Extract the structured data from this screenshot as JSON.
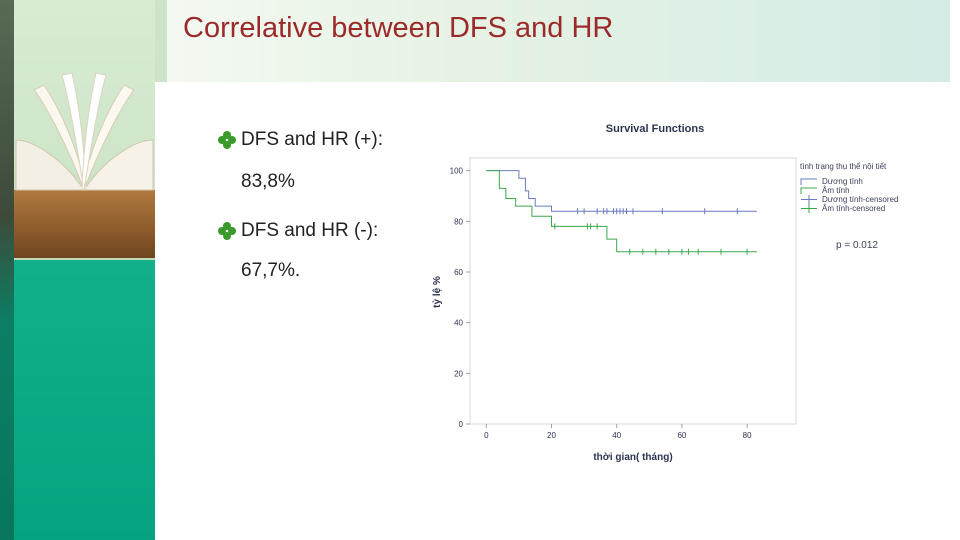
{
  "slide": {
    "title": "Correlative between DFS and HR",
    "bullets": [
      {
        "label": "DFS and HR (+):",
        "value": "83,8%"
      },
      {
        "label": "DFS and HR (-):",
        "value": "67,7%."
      }
    ],
    "bullet_color": "#3a9a2a",
    "title_color": "#9b2b2b"
  },
  "legend": {
    "title": "tình trạng thụ thể nội tiết",
    "items": [
      "Dương tính",
      "Âm tính",
      "Dương tính-censored",
      "Âm tính-censored"
    ]
  },
  "pvalue": "p = 0.012",
  "chart_data": {
    "type": "line",
    "title": "Survival Functions",
    "xlabel": "thời gian( tháng)",
    "ylabel": "tỷ lệ %",
    "xlim": [
      -5,
      95
    ],
    "ylim": [
      0,
      105
    ],
    "x_ticks": [
      0,
      20,
      40,
      60,
      80
    ],
    "y_ticks": [
      0,
      20,
      40,
      60,
      80,
      100
    ],
    "x_tick_labels": [
      "0",
      "20",
      "40",
      "60",
      "80"
    ],
    "y_tick_labels": [
      "0",
      "20",
      "40",
      "60",
      "80",
      "100"
    ],
    "grid": false,
    "legend_position": "right",
    "series": [
      {
        "name": "Dương tính",
        "color": "#6b7bbf",
        "steps": [
          [
            0,
            100
          ],
          [
            5,
            100
          ],
          [
            10,
            97
          ],
          [
            12,
            92
          ],
          [
            13,
            89
          ],
          [
            15,
            86
          ],
          [
            20,
            84
          ],
          [
            83,
            84
          ]
        ],
        "censored": [
          [
            28,
            84
          ],
          [
            30,
            84
          ],
          [
            34,
            84
          ],
          [
            36,
            84
          ],
          [
            37,
            84
          ],
          [
            39,
            84
          ],
          [
            40,
            84
          ],
          [
            41,
            84
          ],
          [
            42,
            84
          ],
          [
            43,
            84
          ],
          [
            45,
            84
          ],
          [
            54,
            84
          ],
          [
            67,
            84
          ],
          [
            77,
            84
          ]
        ]
      },
      {
        "name": "Âm tính",
        "color": "#3aa84a",
        "steps": [
          [
            0,
            100
          ],
          [
            4,
            93
          ],
          [
            6,
            89
          ],
          [
            9,
            86
          ],
          [
            14,
            82
          ],
          [
            20,
            78
          ],
          [
            37,
            73
          ],
          [
            40,
            68
          ],
          [
            83,
            68
          ]
        ],
        "censored": [
          [
            21,
            78
          ],
          [
            31,
            78
          ],
          [
            32,
            78
          ],
          [
            34,
            78
          ],
          [
            44,
            68
          ],
          [
            48,
            68
          ],
          [
            52,
            68
          ],
          [
            56,
            68
          ],
          [
            60,
            68
          ],
          [
            62,
            68
          ],
          [
            65,
            68
          ],
          [
            72,
            68
          ],
          [
            80,
            68
          ]
        ]
      }
    ]
  }
}
